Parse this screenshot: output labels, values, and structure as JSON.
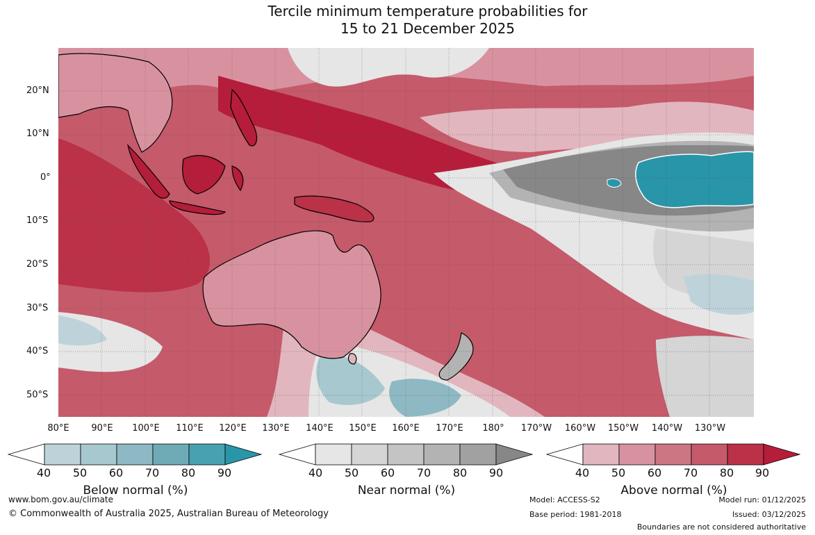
{
  "title": {
    "line1": "Tercile minimum temperature probabilities for",
    "line2": "15 to 21 December 2025"
  },
  "map": {
    "latitude_labels": [
      "20°N",
      "10°N",
      "0°",
      "10°S",
      "20°S",
      "30°S",
      "40°S",
      "50°S"
    ],
    "longitude_labels": [
      "80°E",
      "90°E",
      "100°E",
      "110°E",
      "120°E",
      "130°E",
      "140°E",
      "150°E",
      "160°E",
      "170°E",
      "180°",
      "170°W",
      "160°W",
      "150°W",
      "140°W",
      "130°W"
    ]
  },
  "colorbars": [
    {
      "title": "Below normal (%)",
      "ticks": [
        "40",
        "50",
        "60",
        "70",
        "80",
        "90"
      ],
      "colors": [
        "#ffffff",
        "#bdd3d9",
        "#a7c8cf",
        "#8eb9c4",
        "#6fabb7",
        "#48a1b1",
        "#2995a9"
      ]
    },
    {
      "title": "Near normal (%)",
      "ticks": [
        "40",
        "50",
        "60",
        "70",
        "80",
        "90"
      ],
      "colors": [
        "#ffffff",
        "#e6e6e6",
        "#d5d5d5",
        "#c4c4c4",
        "#b3b3b3",
        "#a1a1a1",
        "#878787"
      ]
    },
    {
      "title": "Above normal (%)",
      "ticks": [
        "40",
        "50",
        "60",
        "70",
        "80",
        "90"
      ],
      "colors": [
        "#ffffff",
        "#e2b6be",
        "#d8929f",
        "#cc7583",
        "#c55a6a",
        "#bb3147",
        "#b51d3a"
      ]
    }
  ],
  "footer": {
    "url": "www.bom.gov.au/climate",
    "copyright": "© Commonwealth of Australia 2025, Australian Bureau of Meteorology",
    "model": "Model: ACCESS-S2",
    "base_period": "Base period: 1981-2018",
    "model_run": "Model run: 01/12/2025",
    "issued": "Issued: 03/12/2025",
    "disclaimer": "Boundaries are not considered authoritative"
  }
}
